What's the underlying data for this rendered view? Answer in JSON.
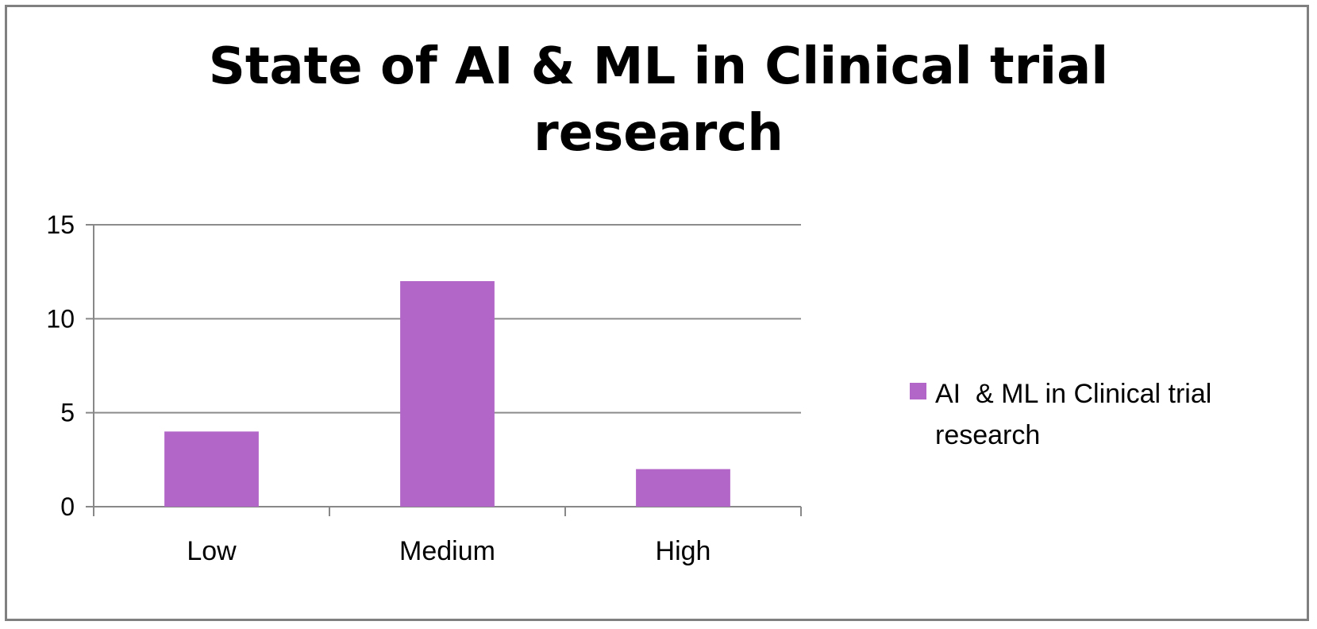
{
  "chart_data": {
    "type": "bar",
    "title_line1": "State of AI & ML in Clinical trial",
    "title_line2": "research",
    "categories": [
      "Low",
      "Medium",
      "High"
    ],
    "series": [
      {
        "name": "AI  & ML in Clinical trial research",
        "values": [
          4,
          12,
          2
        ],
        "color": "#b266c8"
      }
    ],
    "yticks": [
      "0",
      "5",
      "10",
      "15"
    ],
    "ylim": [
      0,
      15
    ],
    "grid": true,
    "legend": "right"
  }
}
